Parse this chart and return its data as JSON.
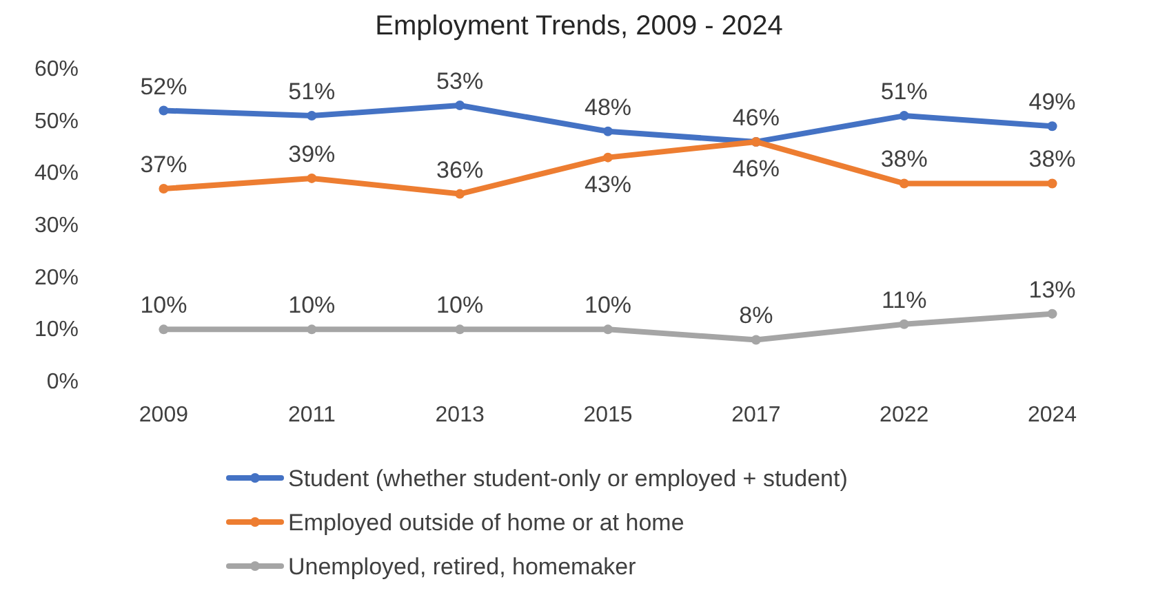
{
  "chart_data": {
    "type": "line",
    "title": "Employment Trends, 2009 - 2024",
    "categories": [
      "2009",
      "2011",
      "2013",
      "2015",
      "2017",
      "2022",
      "2024"
    ],
    "series": [
      {
        "name": "Student (whether student-only or employed + student)",
        "color": "#4472c4",
        "values": [
          52,
          51,
          53,
          48,
          46,
          51,
          49
        ],
        "value_labels": [
          "52%",
          "51%",
          "53%",
          "48%",
          "46%",
          "51%",
          "49%"
        ]
      },
      {
        "name": "Employed outside of home or at home",
        "color": "#ed7d31",
        "values": [
          37,
          39,
          36,
          43,
          46,
          38,
          38
        ],
        "value_labels": [
          "37%",
          "39%",
          "36%",
          "43%",
          "46%",
          "38%",
          "38%"
        ]
      },
      {
        "name": "Unemployed, retired, homemaker",
        "color": "#a5a5a5",
        "values": [
          10,
          10,
          10,
          10,
          8,
          11,
          13
        ],
        "value_labels": [
          "10%",
          "10%",
          "10%",
          "10%",
          "8%",
          "11%",
          "13%"
        ]
      }
    ],
    "ylim": [
      0,
      60
    ],
    "yticks": [
      {
        "value": 0,
        "label": "0%"
      },
      {
        "value": 10,
        "label": "10%"
      },
      {
        "value": 20,
        "label": "20%"
      },
      {
        "value": 30,
        "label": "30%"
      },
      {
        "value": 40,
        "label": "40%"
      },
      {
        "value": 50,
        "label": "50%"
      },
      {
        "value": 60,
        "label": "60%"
      }
    ],
    "grid": false,
    "legend": "bottom",
    "marker": "circle",
    "line_style": "solid"
  }
}
